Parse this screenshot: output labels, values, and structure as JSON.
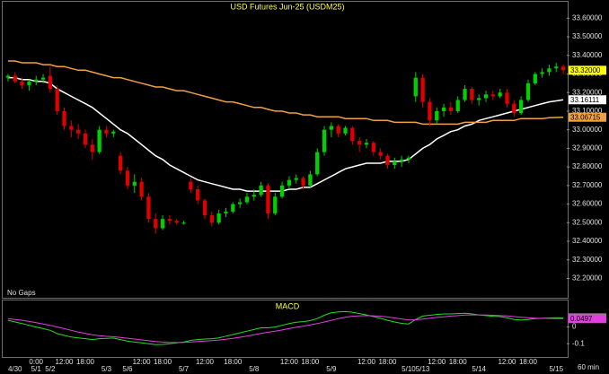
{
  "chart_data": [
    {
      "type": "candlestick",
      "title": "USD Futures Jun-25 (USDM25)",
      "note": "No Gaps",
      "x_unit": "60 min",
      "categories": [
        null,
        "4/30",
        null,
        null,
        "5/1",
        null,
        "5/2",
        null,
        null,
        null,
        null,
        null,
        null,
        null,
        "5/3",
        null,
        null,
        "5/6",
        null,
        null,
        null,
        null,
        null,
        null,
        null,
        "5/7",
        null,
        null,
        null,
        null,
        null,
        null,
        null,
        null,
        null,
        "5/8",
        null,
        null,
        null,
        null,
        null,
        null,
        null,
        null,
        null,
        null,
        "5/9",
        null,
        null,
        null,
        null,
        null,
        null,
        null,
        null,
        null,
        null,
        "5/10",
        null,
        "5/13",
        null,
        null,
        null,
        null,
        null,
        null,
        null,
        "5/14",
        null,
        null,
        null,
        null,
        null,
        null,
        null,
        null,
        null,
        null,
        "5/15",
        null
      ],
      "times": [
        null,
        null,
        null,
        null,
        "0:00",
        null,
        null,
        null,
        "12:00",
        null,
        null,
        "18:00",
        null,
        null,
        null,
        null,
        null,
        null,
        null,
        "12:00",
        null,
        null,
        "18:00",
        null,
        null,
        null,
        null,
        null,
        "12:00",
        null,
        null,
        null,
        "18:00",
        null,
        null,
        null,
        null,
        null,
        null,
        null,
        "12:00",
        null,
        null,
        "18:00",
        null,
        null,
        null,
        null,
        null,
        null,
        null,
        "12:00",
        null,
        null,
        "18:00",
        null,
        null,
        null,
        null,
        null,
        null,
        "12:00",
        null,
        null,
        "18:00",
        null,
        null,
        null,
        null,
        null,
        null,
        "12:00",
        null,
        null,
        "18:00",
        null,
        null,
        null,
        null,
        null
      ],
      "open": [
        33.28,
        33.29,
        33.26,
        33.24,
        33.26,
        33.27,
        33.29,
        33.22,
        33.1,
        33.02,
        33.0,
        32.98,
        32.92,
        32.88,
        33.0,
        32.98,
        32.86,
        32.78,
        32.7,
        32.72,
        32.64,
        32.52,
        32.47,
        32.52,
        32.51,
        32.5,
        32.72,
        32.68,
        32.62,
        32.54,
        32.5,
        32.55,
        32.56,
        32.6,
        32.61,
        32.64,
        32.65,
        32.7,
        32.55,
        32.64,
        32.7,
        32.73,
        32.74,
        32.7,
        32.76,
        32.88,
        33.0,
        33.02,
        32.98,
        33.01,
        32.94,
        32.92,
        32.93,
        32.88,
        32.86,
        32.81,
        32.83,
        32.84,
        33.18,
        33.28,
        33.15,
        33.05,
        33.1,
        33.12,
        33.1,
        33.16,
        33.22,
        33.16,
        33.17,
        33.19,
        33.18,
        33.2,
        33.14,
        33.09,
        33.16,
        33.25,
        33.3,
        33.31,
        33.33,
        33.34
      ],
      "high": [
        33.3,
        33.31,
        33.28,
        33.27,
        33.29,
        33.3,
        33.34,
        33.24,
        33.12,
        33.05,
        33.03,
        33.0,
        32.95,
        33.02,
        33.02,
        33.0,
        32.88,
        32.8,
        32.76,
        32.74,
        32.66,
        32.55,
        32.54,
        32.54,
        32.52,
        32.51,
        32.74,
        32.7,
        32.63,
        32.56,
        32.57,
        32.58,
        32.61,
        32.63,
        32.66,
        32.68,
        32.72,
        32.71,
        32.66,
        32.72,
        32.75,
        32.76,
        32.75,
        32.78,
        32.9,
        33.02,
        33.04,
        33.03,
        33.02,
        33.02,
        32.96,
        32.95,
        32.94,
        32.9,
        32.87,
        32.85,
        32.86,
        32.86,
        33.31,
        33.3,
        33.17,
        33.12,
        33.14,
        33.15,
        33.18,
        33.24,
        33.23,
        33.19,
        33.21,
        33.21,
        33.22,
        33.22,
        33.16,
        33.18,
        33.27,
        33.31,
        33.33,
        33.35,
        33.36,
        33.35
      ],
      "low": [
        33.26,
        33.25,
        33.22,
        33.21,
        33.24,
        33.25,
        33.2,
        33.08,
        33.0,
        32.96,
        32.95,
        32.9,
        32.84,
        32.87,
        32.96,
        32.96,
        32.76,
        32.68,
        32.66,
        32.62,
        32.5,
        32.44,
        32.46,
        32.49,
        32.49,
        32.49,
        32.66,
        32.6,
        32.52,
        32.48,
        32.49,
        32.53,
        32.55,
        32.58,
        32.6,
        32.62,
        32.64,
        32.52,
        32.54,
        32.63,
        32.68,
        32.71,
        32.68,
        32.69,
        32.75,
        32.86,
        32.96,
        32.96,
        32.97,
        32.92,
        32.88,
        32.9,
        32.86,
        32.84,
        32.79,
        32.79,
        32.8,
        32.82,
        33.15,
        33.12,
        33.02,
        33.03,
        33.07,
        33.08,
        33.09,
        33.15,
        33.14,
        33.13,
        33.15,
        33.16,
        33.17,
        33.12,
        33.07,
        33.08,
        33.15,
        33.24,
        33.28,
        33.29,
        33.31,
        33.3
      ],
      "close": [
        33.29,
        33.26,
        33.24,
        33.26,
        33.27,
        33.28,
        33.22,
        33.1,
        33.02,
        33.0,
        32.98,
        32.92,
        32.88,
        33.0,
        32.98,
        32.99,
        32.78,
        32.7,
        32.72,
        32.64,
        32.52,
        32.47,
        32.52,
        32.51,
        32.5,
        32.5,
        32.68,
        32.62,
        32.54,
        32.5,
        32.55,
        32.56,
        32.6,
        32.61,
        32.64,
        32.65,
        32.7,
        32.55,
        32.64,
        32.7,
        32.73,
        32.74,
        32.7,
        32.76,
        32.88,
        33.0,
        33.02,
        32.98,
        33.01,
        32.94,
        32.92,
        32.93,
        32.88,
        32.86,
        32.81,
        32.83,
        32.84,
        32.85,
        33.28,
        33.15,
        33.05,
        33.1,
        33.12,
        33.1,
        33.16,
        33.22,
        33.16,
        33.17,
        33.19,
        33.18,
        33.2,
        33.14,
        33.09,
        33.16,
        33.25,
        33.3,
        33.31,
        33.33,
        33.34,
        33.32
      ],
      "up_color": "#00d000",
      "down_color": "#e00000",
      "last_label": "33.32000",
      "last_color": "#ffff00",
      "lines": [
        {
          "color": "#ffffff",
          "last_label": "33.16111",
          "values": [
            33.28,
            33.28,
            33.27,
            33.27,
            33.26,
            33.26,
            33.25,
            33.22,
            33.2,
            33.18,
            33.16,
            33.14,
            33.12,
            33.09,
            33.06,
            33.03,
            33.0,
            32.98,
            32.95,
            32.92,
            32.89,
            32.86,
            32.84,
            32.81,
            32.79,
            32.77,
            32.75,
            32.73,
            32.72,
            32.71,
            32.7,
            32.69,
            32.68,
            32.68,
            32.67,
            32.67,
            32.67,
            32.67,
            32.67,
            32.67,
            32.68,
            32.68,
            32.69,
            32.69,
            32.71,
            32.73,
            32.75,
            32.77,
            32.79,
            32.8,
            32.81,
            32.82,
            32.82,
            32.82,
            32.83,
            32.83,
            32.83,
            32.84,
            32.87,
            32.9,
            32.92,
            32.95,
            32.97,
            32.99,
            33.0,
            33.02,
            33.03,
            33.05,
            33.06,
            33.07,
            33.08,
            33.09,
            33.1,
            33.11,
            33.12,
            33.13,
            33.14,
            33.15,
            33.155,
            33.16111
          ]
        },
        {
          "color": "#f0a040",
          "last_label": "33.06715",
          "values": [
            33.37,
            33.37,
            33.36,
            33.36,
            33.36,
            33.35,
            33.35,
            33.34,
            33.34,
            33.33,
            33.32,
            33.32,
            33.31,
            33.3,
            33.29,
            33.28,
            33.28,
            33.27,
            33.26,
            33.25,
            33.24,
            33.23,
            33.23,
            33.22,
            33.21,
            33.21,
            33.2,
            33.19,
            33.18,
            33.17,
            33.16,
            33.15,
            33.15,
            33.14,
            33.13,
            33.12,
            33.12,
            33.11,
            33.1,
            33.1,
            33.09,
            33.09,
            33.08,
            33.08,
            33.07,
            33.07,
            33.07,
            33.07,
            33.06,
            33.06,
            33.06,
            33.06,
            33.05,
            33.05,
            33.05,
            33.04,
            33.04,
            33.04,
            33.04,
            33.03,
            33.03,
            33.03,
            33.03,
            33.03,
            33.03,
            33.04,
            33.04,
            33.04,
            33.04,
            33.05,
            33.05,
            33.05,
            33.05,
            33.06,
            33.06,
            33.06,
            33.06,
            33.065,
            33.066,
            33.06715
          ]
        }
      ],
      "ylim": [
        32.13,
        33.64
      ],
      "yticks": [
        {
          "value": 32.2,
          "label": "32.20000"
        },
        {
          "value": 32.3,
          "label": "32.30000"
        },
        {
          "value": 32.4,
          "label": "32.40000"
        },
        {
          "value": 32.5,
          "label": "32.50000"
        },
        {
          "value": 32.6,
          "label": "32.60000"
        },
        {
          "value": 32.7,
          "label": "32.70000"
        },
        {
          "value": 32.8,
          "label": "32.80000"
        },
        {
          "value": 32.9,
          "label": "32.90000"
        },
        {
          "value": 33.0,
          "label": "33.00000"
        },
        {
          "value": 33.1,
          "label": "33.10000"
        },
        {
          "value": 33.2,
          "label": "33.20000"
        },
        {
          "value": 33.3,
          "label": "33.30000"
        },
        {
          "value": 33.4,
          "label": "33.40000"
        },
        {
          "value": 33.5,
          "label": "33.50000"
        },
        {
          "value": 33.6,
          "label": "33.60000"
        }
      ]
    },
    {
      "type": "line",
      "title": "MACD",
      "series": [
        {
          "color": "#20e020",
          "last_label": "0.0545",
          "values": [
            0.04,
            0.03,
            0.02,
            0.01,
            0.0,
            -0.01,
            -0.02,
            -0.04,
            -0.05,
            -0.06,
            -0.065,
            -0.07,
            -0.075,
            -0.07,
            -0.068,
            -0.066,
            -0.075,
            -0.085,
            -0.09,
            -0.095,
            -0.1,
            -0.105,
            -0.104,
            -0.1,
            -0.095,
            -0.09,
            -0.08,
            -0.075,
            -0.072,
            -0.07,
            -0.065,
            -0.055,
            -0.045,
            -0.035,
            -0.025,
            -0.015,
            -0.005,
            -0.005,
            0.0,
            0.01,
            0.02,
            0.028,
            0.032,
            0.038,
            0.05,
            0.07,
            0.085,
            0.09,
            0.092,
            0.088,
            0.08,
            0.072,
            0.062,
            0.052,
            0.04,
            0.03,
            0.022,
            0.018,
            0.045,
            0.065,
            0.07,
            0.075,
            0.078,
            0.078,
            0.08,
            0.082,
            0.078,
            0.072,
            0.068,
            0.064,
            0.062,
            0.055,
            0.045,
            0.042,
            0.045,
            0.05,
            0.052,
            0.054,
            0.055,
            0.0545
          ]
        },
        {
          "color": "#e040e0",
          "last_label": "0.0497",
          "values": [
            0.05,
            0.045,
            0.04,
            0.033,
            0.026,
            0.018,
            0.01,
            0.0,
            -0.01,
            -0.02,
            -0.03,
            -0.038,
            -0.046,
            -0.052,
            -0.056,
            -0.058,
            -0.062,
            -0.067,
            -0.072,
            -0.077,
            -0.082,
            -0.087,
            -0.09,
            -0.092,
            -0.093,
            -0.092,
            -0.09,
            -0.087,
            -0.084,
            -0.081,
            -0.078,
            -0.073,
            -0.068,
            -0.061,
            -0.054,
            -0.046,
            -0.038,
            -0.031,
            -0.025,
            -0.018,
            -0.01,
            -0.002,
            0.005,
            0.012,
            0.02,
            0.03,
            0.04,
            0.05,
            0.058,
            0.064,
            0.067,
            0.068,
            0.067,
            0.064,
            0.06,
            0.054,
            0.048,
            0.042,
            0.043,
            0.047,
            0.052,
            0.057,
            0.061,
            0.065,
            0.068,
            0.071,
            0.072,
            0.072,
            0.071,
            0.07,
            0.068,
            0.066,
            0.062,
            0.058,
            0.055,
            0.053,
            0.052,
            0.051,
            0.05,
            0.0497
          ]
        }
      ],
      "ylim": [
        -0.179,
        0.153
      ],
      "yticks": [
        0,
        -0.1
      ]
    }
  ]
}
